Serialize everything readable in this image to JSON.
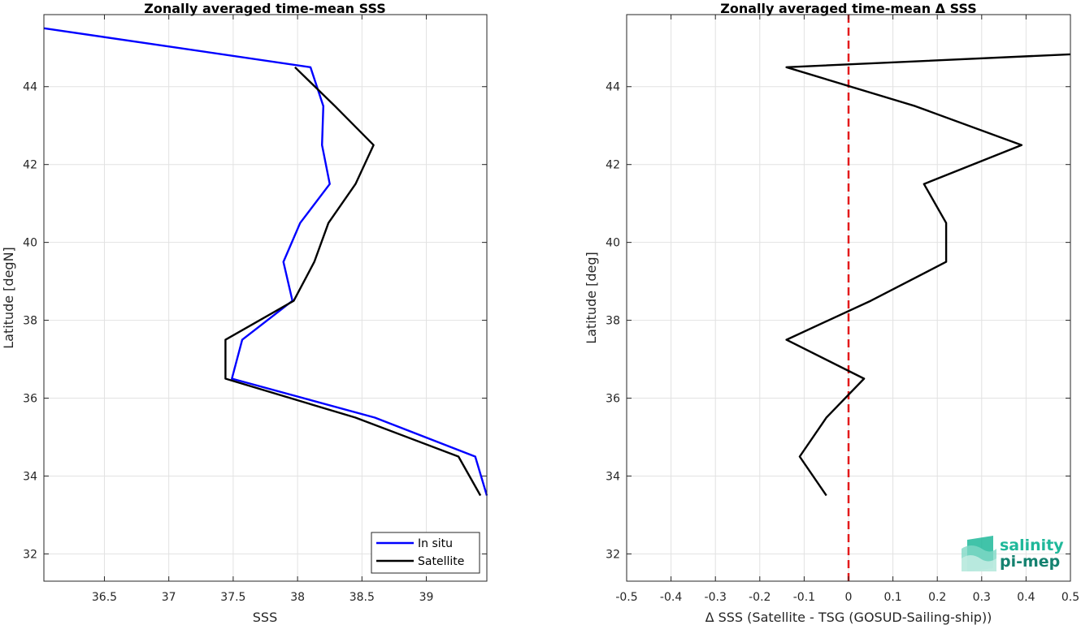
{
  "chart_data": [
    {
      "type": "line",
      "title": "Zonally averaged time-mean SSS",
      "xlabel": "SSS",
      "ylabel": "Latitude [degN]",
      "xlim": [
        36.03,
        39.47
      ],
      "ylim": [
        31.3,
        45.85
      ],
      "xticks": [
        36.5,
        37,
        37.5,
        38,
        38.5,
        39
      ],
      "xtick_labels": [
        "36.5",
        "37",
        "37.5",
        "38",
        "38.5",
        "39"
      ],
      "yticks": [
        32,
        34,
        36,
        38,
        40,
        42,
        44
      ],
      "ytick_labels": [
        "32",
        "34",
        "36",
        "38",
        "40",
        "42",
        "44"
      ],
      "grid": true,
      "legend_position": "bottom-right",
      "series": [
        {
          "name": "In situ",
          "color": "#0000ff",
          "x": [
            36.03,
            38.1,
            38.2,
            38.19,
            38.25,
            38.02,
            37.89,
            37.96,
            37.57,
            37.49,
            38.6,
            39.38,
            39.47
          ],
          "y": [
            45.5,
            44.5,
            43.5,
            42.5,
            41.5,
            40.5,
            39.5,
            38.5,
            37.5,
            36.5,
            35.5,
            34.5,
            33.5
          ]
        },
        {
          "name": "Satellite",
          "color": "#000000",
          "x": [
            37.98,
            38.29,
            38.59,
            38.45,
            38.24,
            38.13,
            37.97,
            37.44,
            37.44,
            38.45,
            39.25,
            39.42
          ],
          "y": [
            44.5,
            43.5,
            42.5,
            41.5,
            40.5,
            39.5,
            38.5,
            37.5,
            36.5,
            35.5,
            34.5,
            33.5
          ]
        }
      ]
    },
    {
      "type": "line",
      "title": "Zonally averaged time-mean Δ SSS",
      "xlabel": "Δ SSS (Satellite - TSG (GOSUD-Sailing-ship))",
      "ylabel": "Latitude [deg]",
      "xlim": [
        -0.5,
        0.5
      ],
      "ylim": [
        31.3,
        45.85
      ],
      "xticks": [
        -0.5,
        -0.4,
        -0.3,
        -0.2,
        -0.1,
        0,
        0.1,
        0.2,
        0.3,
        0.4,
        0.5
      ],
      "xtick_labels": [
        "-0.5",
        "-0.4",
        "-0.3",
        "-0.2",
        "-0.1",
        "0",
        "0.1",
        "0.2",
        "0.3",
        "0.4",
        "0.5"
      ],
      "yticks": [
        32,
        34,
        36,
        38,
        40,
        42,
        44
      ],
      "ytick_labels": [
        "32",
        "34",
        "36",
        "38",
        "40",
        "42",
        "44"
      ],
      "grid": true,
      "reference_line": {
        "x": 0,
        "color": "#e31a1c",
        "style": "dashed"
      },
      "series": [
        {
          "color": "#000000",
          "x": [
            0.5,
            -0.14,
            0.15,
            0.39,
            0.17,
            0.22,
            0.22,
            0.05,
            -0.14,
            0.035,
            -0.05,
            -0.11,
            -0.05
          ],
          "y": [
            44.83,
            44.5,
            43.5,
            42.5,
            41.5,
            40.5,
            39.5,
            38.5,
            37.5,
            36.5,
            35.5,
            34.5,
            33.5
          ]
        }
      ]
    }
  ],
  "logo": {
    "line1": "salinity",
    "line2": "pi-mep",
    "color_primary": "#20b89a",
    "color_dark": "#158270"
  }
}
